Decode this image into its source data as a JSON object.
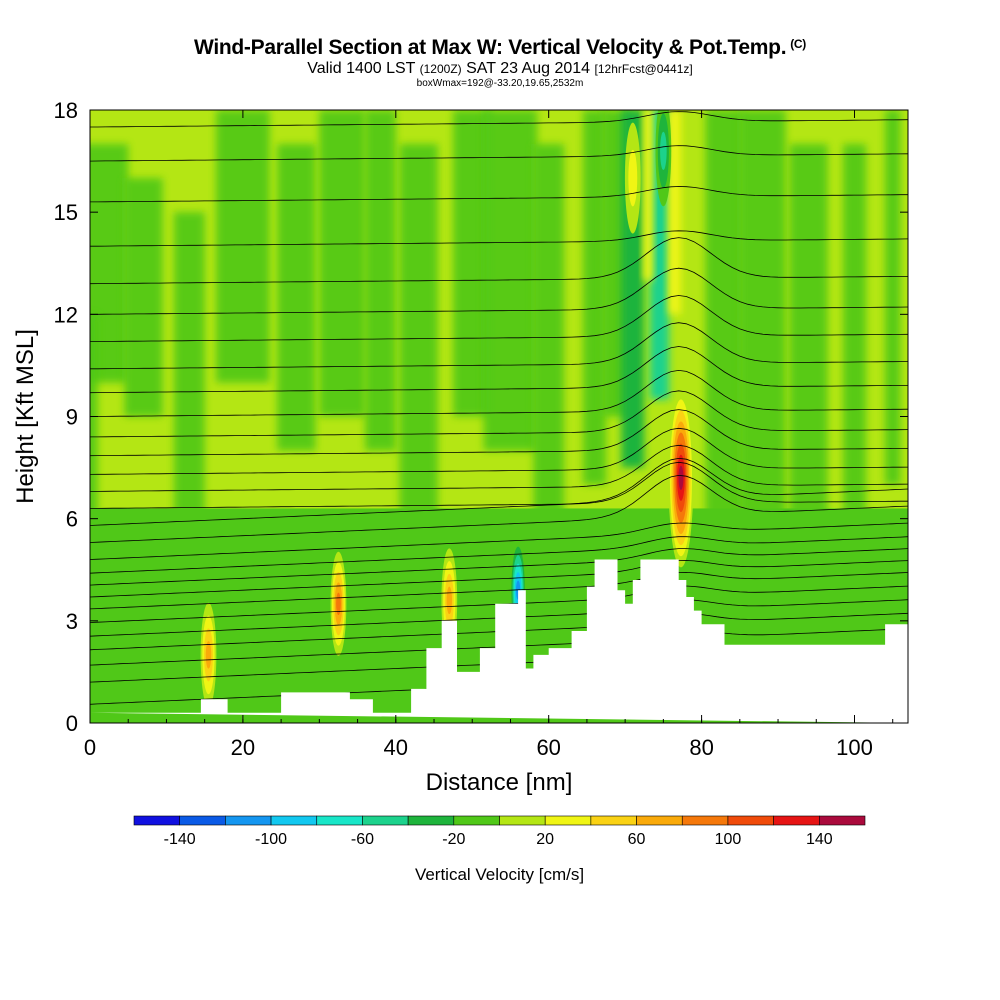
{
  "header": {
    "title": "Wind-Parallel Section at Max W: Vertical Velocity & Pot.Temp.",
    "title_tag": "(C)",
    "subtitle_a": "Valid 1400 LST",
    "subtitle_b": "(1200Z)",
    "subtitle_c": "SAT 23 Aug 2014",
    "subtitle_d": "[12hrFcst@0441z]",
    "note": "boxWmax=192@-33.20,19.65,2532m"
  },
  "chart_data": {
    "type": "heatmap",
    "xlabel": "Distance [nm]",
    "ylabel": "Height [Kft MSL]",
    "xlim": [
      0,
      107
    ],
    "ylim": [
      0,
      18
    ],
    "x_ticks": [
      0,
      20,
      40,
      60,
      80,
      100
    ],
    "y_ticks": [
      0,
      3,
      6,
      9,
      12,
      15,
      18
    ],
    "colorbar": {
      "label": "Vertical Velocity [cm/s]",
      "tick_labels": [
        "-140",
        "-100",
        "-60",
        "-20",
        "20",
        "60",
        "100",
        "140"
      ],
      "range": [
        -160,
        160
      ],
      "bins": [
        {
          "from": -160,
          "to": -140,
          "color": "#1010e0"
        },
        {
          "from": -140,
          "to": -120,
          "color": "#0a5ae6"
        },
        {
          "from": -120,
          "to": -100,
          "color": "#1496f0"
        },
        {
          "from": -100,
          "to": -80,
          "color": "#12c8f0"
        },
        {
          "from": -80,
          "to": -60,
          "color": "#18e6c8"
        },
        {
          "from": -60,
          "to": -40,
          "color": "#1cd28c"
        },
        {
          "from": -40,
          "to": -20,
          "color": "#1eb43c"
        },
        {
          "from": -20,
          "to": 0,
          "color": "#50c818"
        },
        {
          "from": 0,
          "to": 20,
          "color": "#b4e614"
        },
        {
          "from": 20,
          "to": 40,
          "color": "#f0f514"
        },
        {
          "from": 40,
          "to": 60,
          "color": "#fad214"
        },
        {
          "from": 60,
          "to": 80,
          "color": "#faaa0a"
        },
        {
          "from": 80,
          "to": 100,
          "color": "#f5780a"
        },
        {
          "from": 100,
          "to": 120,
          "color": "#f04b0a"
        },
        {
          "from": 120,
          "to": 140,
          "color": "#e61414"
        },
        {
          "from": 140,
          "to": 160,
          "color": "#aa0a3c"
        }
      ]
    },
    "terrain": [
      [
        0,
        0.3
      ],
      [
        14.5,
        0.3
      ],
      [
        14.5,
        0.7
      ],
      [
        18,
        0.7
      ],
      [
        18,
        0.3
      ],
      [
        25,
        0.3
      ],
      [
        25,
        0.9
      ],
      [
        34,
        0.9
      ],
      [
        34,
        0.7
      ],
      [
        37,
        0.7
      ],
      [
        37,
        0.3
      ],
      [
        42,
        0.3
      ],
      [
        42,
        1.0
      ],
      [
        44,
        1.0
      ],
      [
        44,
        2.2
      ],
      [
        46,
        2.2
      ],
      [
        46,
        3.0
      ],
      [
        48,
        3.0
      ],
      [
        48,
        1.5
      ],
      [
        51,
        1.5
      ],
      [
        51,
        2.2
      ],
      [
        53,
        2.2
      ],
      [
        53,
        3.5
      ],
      [
        56,
        3.5
      ],
      [
        56,
        3.9
      ],
      [
        57,
        3.9
      ],
      [
        57,
        1.6
      ],
      [
        58,
        1.6
      ],
      [
        58,
        2.0
      ],
      [
        60,
        2.0
      ],
      [
        60,
        2.2
      ],
      [
        63,
        2.2
      ],
      [
        63,
        2.7
      ],
      [
        65,
        2.7
      ],
      [
        65,
        4.0
      ],
      [
        66,
        4.0
      ],
      [
        66,
        4.8
      ],
      [
        69,
        4.8
      ],
      [
        69,
        3.9
      ],
      [
        70,
        3.9
      ],
      [
        70,
        3.5
      ],
      [
        71,
        3.5
      ],
      [
        71,
        4.2
      ],
      [
        72,
        4.2
      ],
      [
        72,
        4.8
      ],
      [
        77,
        4.8
      ],
      [
        77,
        4.2
      ],
      [
        78,
        4.2
      ],
      [
        78,
        3.7
      ],
      [
        79,
        3.7
      ],
      [
        79,
        3.3
      ],
      [
        80,
        3.3
      ],
      [
        80,
        2.9
      ],
      [
        83,
        2.9
      ],
      [
        83,
        2.3
      ],
      [
        104,
        2.3
      ],
      [
        104,
        2.9
      ],
      [
        107,
        2.9
      ],
      [
        107,
        0
      ]
    ],
    "features": [
      {
        "name": "main-updraft",
        "x": 77.3,
        "y": 7.2,
        "w_core_cm_s": 150
      },
      {
        "name": "upper-updraft",
        "x": 71.0,
        "y": 16.0,
        "w_core_cm_s": 40
      },
      {
        "name": "upper-downdraft",
        "x": 75.0,
        "y": 16.8,
        "w_core_cm_s": -60
      },
      {
        "name": "low-updraft",
        "x": 15.5,
        "y": 2.0,
        "w_core_cm_s": 80
      },
      {
        "name": "low-updraft",
        "x": 32.5,
        "y": 3.5,
        "w_core_cm_s": 90
      },
      {
        "name": "low-updraft",
        "x": 47.0,
        "y": 3.6,
        "w_core_cm_s": 70
      },
      {
        "name": "low-downdraft",
        "x": 56.0,
        "y": 3.9,
        "w_core_cm_s": -110
      }
    ],
    "theta_contours": {
      "y_at_left": [
        0.55,
        1.2,
        1.7,
        2.15,
        2.55,
        2.95,
        3.35,
        3.7,
        4.05,
        4.4,
        4.8,
        5.3,
        5.8,
        6.3,
        6.8,
        7.3,
        7.85,
        8.4,
        9.0,
        9.7,
        10.4,
        11.2,
        12.0,
        12.9,
        14.0,
        15.3,
        16.5,
        17.5
      ]
    }
  }
}
